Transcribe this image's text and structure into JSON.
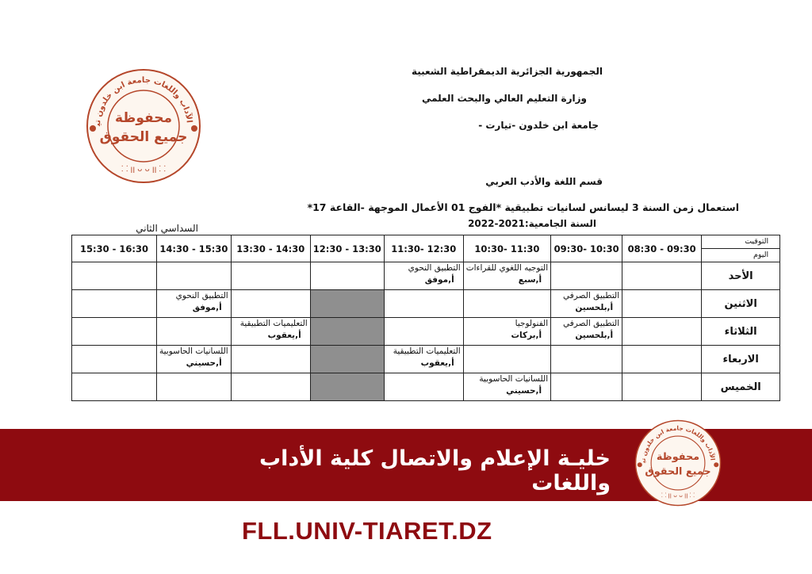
{
  "header": {
    "republic": "الجمهورية الجزائرية الديمقراطية الشعبية",
    "ministry": "وزارة التعليم العالي والبحث العلمي",
    "university": "جامعة ابن خلدون -تيارت -",
    "department": "قسم اللغة والأدب العربي",
    "schedule_title": "استعمال زمن السنة 3 ليسانس لسانيات تطبيقية   *الفوج 01 الأعمال الموجهة -القاعة 17*",
    "academic_year": "السنة الجامعية:2021-2022",
    "semester": "السداسي الثاني"
  },
  "stamp": {
    "ring_text": "كلية الآداب واللغات جامعة ابن خلدون تيارت",
    "center_line1": "محفوظة",
    "center_line2": "جميع الحقوق",
    "color": "#b5472b"
  },
  "table": {
    "corner_time": "التوقيت",
    "corner_day": "اليوم",
    "time_slots": [
      "09:30 - 08:30",
      "10:30 -09:30",
      "11:30 -10:30",
      "12:30 -11:30",
      "13:30 - 12:30",
      "14:30 - 13:30",
      "15:30 - 14:30",
      "16:30 - 15:30"
    ],
    "break_slot_color": "#8f8f8f",
    "rows": [
      {
        "day": "الأحد",
        "cells": [
          null,
          null,
          {
            "course": "التوجيه اللغوي للقراءات",
            "teacher": "أ,سبع"
          },
          {
            "course": "التطبيق النحوي",
            "teacher": "أ,موفق"
          },
          null,
          null,
          null,
          null
        ]
      },
      {
        "day": "الاثنين",
        "cells": [
          null,
          {
            "course": "التطبيق الصرفي",
            "teacher": "أ,بلحسين"
          },
          null,
          null,
          "break",
          null,
          {
            "course": "التطبيق النحوي",
            "teacher": "أ,موفق"
          },
          null
        ]
      },
      {
        "day": "الثلاثاء",
        "cells": [
          null,
          {
            "course": "التطبيق الصرفي",
            "teacher": "أ,بلحسين"
          },
          {
            "course": "الفنولوجيا",
            "teacher": "أ,بركات"
          },
          null,
          "break",
          {
            "course": "التعليميات التطبيقية",
            "teacher": "أ,يعقوب"
          },
          null,
          null
        ]
      },
      {
        "day": "الاربعاء",
        "cells": [
          null,
          null,
          null,
          {
            "course": "التعليميات التطبيقية",
            "teacher": "أ,يعقوب"
          },
          "break",
          null,
          {
            "course": "اللسانيات الحاسوبية",
            "teacher": "أ,حسيني"
          },
          null
        ]
      },
      {
        "day": "الخميس",
        "cells": [
          null,
          null,
          {
            "course": "اللسانيات الحاسوبية",
            "teacher": "أ,حسيني"
          },
          null,
          "break",
          null,
          null,
          null
        ]
      }
    ]
  },
  "footer": {
    "banner_text": "خليـة الإعلام والاتصال كلية الأداب واللغات",
    "banner_color": "#8e0b10",
    "url": "FLL.UNIV-TIARET.DZ"
  }
}
